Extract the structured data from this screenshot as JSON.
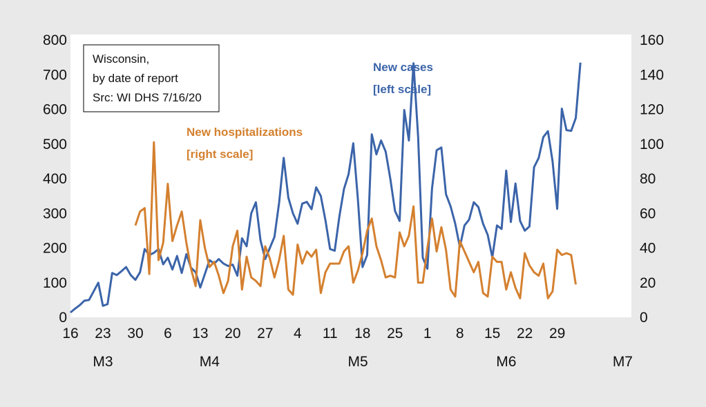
{
  "chart_data": {
    "type": "line",
    "title": "",
    "xlabel": "",
    "ylabel": "",
    "ylim_left": [
      0,
      800
    ],
    "ylim_right": [
      0,
      160
    ],
    "yticks_left": [
      0,
      100,
      200,
      300,
      400,
      500,
      600,
      700,
      800
    ],
    "yticks_right": [
      0,
      20,
      40,
      60,
      80,
      100,
      120,
      140,
      160
    ],
    "x_start": "2020-03-16",
    "x_end": "2020-07-15",
    "x_tick_labels": [
      "16",
      "23",
      "30",
      "6",
      "13",
      "20",
      "27",
      "4",
      "11",
      "18",
      "25",
      "1",
      "8",
      "15",
      "22",
      "29"
    ],
    "month_labels": [
      "M3",
      "M4",
      "M5",
      "M6",
      "M7"
    ],
    "colors": {
      "cases": "#3b64a9",
      "hospitalizations": "#d4802f"
    },
    "info_box": [
      "Wisconsin,",
      "by date of report",
      "Src: WI DHS 7/16/20"
    ],
    "annotations": {
      "cases": [
        "New cases",
        "[left scale]"
      ],
      "hospitalizations": [
        "New hospitalizations",
        "[right scale]"
      ]
    },
    "series": [
      {
        "name": "New cases",
        "axis": "left",
        "start": "2020-03-16",
        "values": [
          14,
          25,
          35,
          48,
          50,
          75,
          100,
          33,
          38,
          128,
          122,
          133,
          145,
          122,
          108,
          130,
          197,
          180,
          186,
          197,
          153,
          172,
          138,
          177,
          128,
          182,
          143,
          130,
          86,
          125,
          165,
          155,
          168,
          155,
          148,
          152,
          120,
          228,
          205,
          300,
          332,
          222,
          168,
          200,
          232,
          330,
          460,
          345,
          300,
          270,
          328,
          333,
          312,
          375,
          350,
          280,
          197,
          192,
          290,
          370,
          413,
          502,
          340,
          145,
          180,
          528,
          470,
          510,
          478,
          400,
          307,
          278,
          598,
          510,
          733,
          520,
          172,
          140,
          372,
          482,
          490,
          355,
          320,
          270,
          203,
          265,
          282,
          332,
          318,
          270,
          238,
          173,
          265,
          255,
          423,
          275,
          386,
          278,
          250,
          262,
          433,
          460,
          520,
          537,
          450,
          313,
          602,
          540,
          538,
          575,
          735
        ]
      },
      {
        "name": "New hospitalizations",
        "axis": "right",
        "start": "2020-03-30",
        "values": [
          53,
          61,
          63,
          25,
          101,
          33,
          43,
          77,
          44,
          53,
          61,
          43,
          28,
          18,
          56,
          40,
          29,
          32,
          24,
          14,
          21,
          41,
          50,
          16,
          35,
          23,
          21,
          18,
          41,
          34,
          23,
          33,
          47,
          16,
          13,
          42,
          31,
          38,
          35,
          39,
          14,
          26,
          31,
          31,
          31,
          38,
          41,
          20,
          27,
          37,
          50,
          57,
          41,
          33,
          23,
          24,
          23,
          49,
          41,
          47,
          64,
          20,
          20,
          40,
          57,
          38,
          52,
          39,
          16,
          12,
          44,
          38,
          32,
          26,
          32,
          14,
          12,
          35,
          32,
          32,
          16,
          26,
          17,
          11,
          37,
          30,
          26,
          24,
          31,
          11,
          15,
          39,
          36,
          37,
          36,
          19
        ]
      }
    ]
  }
}
